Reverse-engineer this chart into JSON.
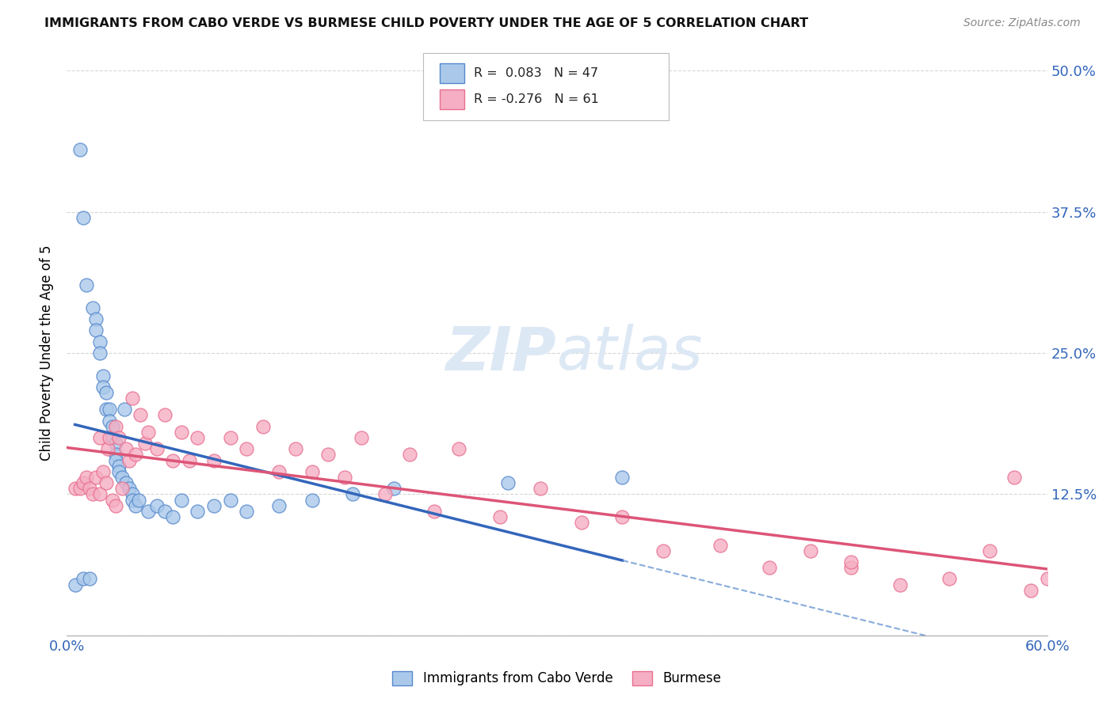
{
  "title": "IMMIGRANTS FROM CABO VERDE VS BURMESE CHILD POVERTY UNDER THE AGE OF 5 CORRELATION CHART",
  "source": "Source: ZipAtlas.com",
  "ylabel": "Child Poverty Under the Age of 5",
  "legend_label_1": "Immigrants from Cabo Verde",
  "legend_label_2": "Burmese",
  "r1": 0.083,
  "n1": 47,
  "r2": -0.276,
  "n2": 61,
  "xmin": 0.0,
  "xmax": 0.6,
  "ymin": 0.0,
  "ymax": 0.5,
  "yticks": [
    0.0,
    0.125,
    0.25,
    0.375,
    0.5
  ],
  "ytick_labels": [
    "",
    "12.5%",
    "25.0%",
    "37.5%",
    "50.0%"
  ],
  "xticks": [
    0.0,
    0.1,
    0.2,
    0.3,
    0.4,
    0.5,
    0.6
  ],
  "xtick_labels": [
    "0.0%",
    "",
    "",
    "",
    "",
    "",
    "60.0%"
  ],
  "color_blue": "#aac9ea",
  "color_pink": "#f5aec3",
  "edge_blue": "#5588cc",
  "edge_pink": "#e87090",
  "line_blue": "#3366bb",
  "line_pink": "#dd5577",
  "grid_color": "#cccccc",
  "background": "#ffffff",
  "cabo_verde_x": [
    0.005,
    0.008,
    0.01,
    0.01,
    0.012,
    0.014,
    0.016,
    0.018,
    0.018,
    0.02,
    0.02,
    0.022,
    0.022,
    0.024,
    0.024,
    0.026,
    0.026,
    0.028,
    0.028,
    0.03,
    0.03,
    0.03,
    0.032,
    0.032,
    0.034,
    0.035,
    0.036,
    0.038,
    0.04,
    0.04,
    0.042,
    0.044,
    0.05,
    0.055,
    0.06,
    0.065,
    0.07,
    0.08,
    0.09,
    0.1,
    0.11,
    0.13,
    0.15,
    0.175,
    0.2,
    0.27,
    0.34
  ],
  "cabo_verde_y": [
    0.045,
    0.43,
    0.37,
    0.05,
    0.31,
    0.05,
    0.29,
    0.28,
    0.27,
    0.26,
    0.25,
    0.23,
    0.22,
    0.215,
    0.2,
    0.2,
    0.19,
    0.185,
    0.175,
    0.17,
    0.16,
    0.155,
    0.15,
    0.145,
    0.14,
    0.2,
    0.135,
    0.13,
    0.125,
    0.12,
    0.115,
    0.12,
    0.11,
    0.115,
    0.11,
    0.105,
    0.12,
    0.11,
    0.115,
    0.12,
    0.11,
    0.115,
    0.12,
    0.125,
    0.13,
    0.135,
    0.14
  ],
  "burmese_x": [
    0.005,
    0.008,
    0.01,
    0.012,
    0.014,
    0.016,
    0.018,
    0.02,
    0.02,
    0.022,
    0.024,
    0.025,
    0.026,
    0.028,
    0.03,
    0.03,
    0.032,
    0.034,
    0.036,
    0.038,
    0.04,
    0.042,
    0.045,
    0.048,
    0.05,
    0.055,
    0.06,
    0.065,
    0.07,
    0.075,
    0.08,
    0.09,
    0.1,
    0.11,
    0.12,
    0.13,
    0.14,
    0.15,
    0.16,
    0.17,
    0.18,
    0.195,
    0.21,
    0.225,
    0.24,
    0.265,
    0.29,
    0.315,
    0.34,
    0.365,
    0.4,
    0.43,
    0.455,
    0.48,
    0.51,
    0.54,
    0.565,
    0.59,
    0.6,
    0.58,
    0.48
  ],
  "burmese_y": [
    0.13,
    0.13,
    0.135,
    0.14,
    0.13,
    0.125,
    0.14,
    0.175,
    0.125,
    0.145,
    0.135,
    0.165,
    0.175,
    0.12,
    0.185,
    0.115,
    0.175,
    0.13,
    0.165,
    0.155,
    0.21,
    0.16,
    0.195,
    0.17,
    0.18,
    0.165,
    0.195,
    0.155,
    0.18,
    0.155,
    0.175,
    0.155,
    0.175,
    0.165,
    0.185,
    0.145,
    0.165,
    0.145,
    0.16,
    0.14,
    0.175,
    0.125,
    0.16,
    0.11,
    0.165,
    0.105,
    0.13,
    0.1,
    0.105,
    0.075,
    0.08,
    0.06,
    0.075,
    0.06,
    0.045,
    0.05,
    0.075,
    0.04,
    0.05,
    0.14,
    0.065
  ]
}
